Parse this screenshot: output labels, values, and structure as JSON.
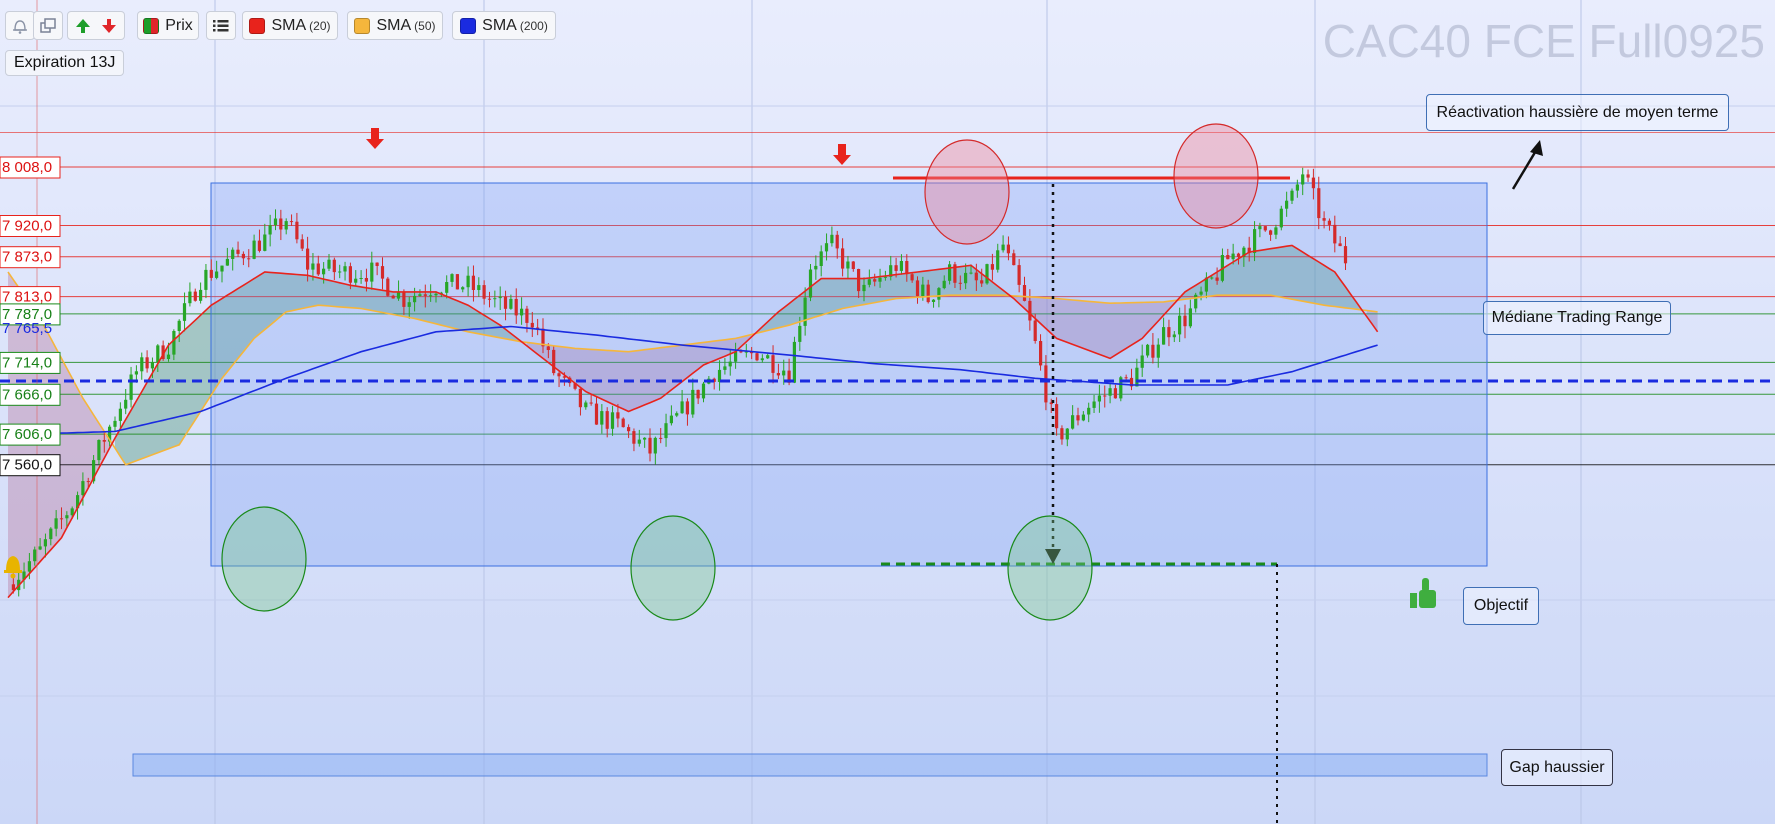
{
  "toolbar": {
    "prix_label": "Prix",
    "indicators": [
      {
        "name": "SMA",
        "period": "(20)",
        "color": "#e8231c"
      },
      {
        "name": "SMA",
        "period": "(50)",
        "color": "#f5b63c"
      },
      {
        "name": "SMA",
        "period": "(200)",
        "color": "#1a2be0"
      }
    ],
    "icons": [
      "alert-bell-icon",
      "window-icon",
      "arrow-up-icon",
      "arrow-down-icon",
      "candles-icon",
      "list-icon"
    ]
  },
  "expiration": {
    "label": "Expiration",
    "value": "13J"
  },
  "watermark": "CAC40 FCE Full0925",
  "colors": {
    "bull": "#27a627",
    "bear": "#d42a2a",
    "sma20": "#e8231c",
    "sma50": "#f5b63c",
    "sma200": "#1a2be0",
    "range_box": "#3a6fe0"
  },
  "chart_data": {
    "type": "candlestick",
    "instrument": "CAC40 FCE Full0925",
    "ylim": [
      7345,
      8090
    ],
    "price_levels": [
      {
        "value": "8 008,0",
        "color": "red"
      },
      {
        "value": "7 920,0",
        "color": "red"
      },
      {
        "value": "7 873,0",
        "color": "red"
      },
      {
        "value": "7 813,0",
        "color": "red"
      },
      {
        "value": "7 787,0",
        "color": "green"
      },
      {
        "value": "7 765,5",
        "color": "blue"
      },
      {
        "value": "7 714,0",
        "color": "green"
      },
      {
        "value": "7 666,0",
        "color": "green"
      },
      {
        "value": "7 606,0",
        "color": "green"
      },
      {
        "value": "7 560,0",
        "color": "black"
      }
    ],
    "close_path": [
      [
        0,
        7380
      ],
      [
        6,
        7430
      ],
      [
        12,
        7500
      ],
      [
        18,
        7600
      ],
      [
        24,
        7700
      ],
      [
        30,
        7740
      ],
      [
        36,
        7840
      ],
      [
        42,
        7870
      ],
      [
        48,
        7900
      ],
      [
        52,
        7930
      ],
      [
        56,
        7860
      ],
      [
        62,
        7850
      ],
      [
        68,
        7850
      ],
      [
        74,
        7810
      ],
      [
        80,
        7830
      ],
      [
        86,
        7830
      ],
      [
        92,
        7800
      ],
      [
        98,
        7780
      ],
      [
        102,
        7700
      ],
      [
        108,
        7640
      ],
      [
        114,
        7620
      ],
      [
        120,
        7580
      ],
      [
        126,
        7640
      ],
      [
        132,
        7700
      ],
      [
        140,
        7730
      ],
      [
        146,
        7700
      ],
      [
        150,
        7860
      ],
      [
        154,
        7890
      ],
      [
        160,
        7820
      ],
      [
        166,
        7860
      ],
      [
        172,
        7810
      ],
      [
        176,
        7850
      ],
      [
        182,
        7830
      ],
      [
        186,
        7890
      ],
      [
        190,
        7800
      ],
      [
        192,
        7740
      ],
      [
        196,
        7600
      ],
      [
        202,
        7650
      ],
      [
        210,
        7690
      ],
      [
        216,
        7760
      ],
      [
        220,
        7780
      ],
      [
        228,
        7870
      ],
      [
        236,
        7920
      ],
      [
        240,
        7960
      ],
      [
        242,
        8000
      ],
      [
        246,
        7920
      ],
      [
        250,
        7870
      ]
    ],
    "sma20": [
      [
        0,
        7360
      ],
      [
        10,
        7450
      ],
      [
        20,
        7600
      ],
      [
        30,
        7740
      ],
      [
        38,
        7800
      ],
      [
        48,
        7850
      ],
      [
        56,
        7845
      ],
      [
        64,
        7830
      ],
      [
        72,
        7820
      ],
      [
        80,
        7820
      ],
      [
        86,
        7800
      ],
      [
        92,
        7770
      ],
      [
        100,
        7720
      ],
      [
        108,
        7670
      ],
      [
        116,
        7640
      ],
      [
        122,
        7660
      ],
      [
        130,
        7710
      ],
      [
        136,
        7730
      ],
      [
        144,
        7790
      ],
      [
        152,
        7840
      ],
      [
        160,
        7840
      ],
      [
        170,
        7850
      ],
      [
        180,
        7860
      ],
      [
        188,
        7810
      ],
      [
        196,
        7750
      ],
      [
        206,
        7720
      ],
      [
        212,
        7750
      ],
      [
        220,
        7820
      ],
      [
        232,
        7880
      ],
      [
        240,
        7890
      ],
      [
        248,
        7850
      ],
      [
        256,
        7760
      ]
    ],
    "sma50": [
      [
        0,
        7850
      ],
      [
        6,
        7780
      ],
      [
        14,
        7660
      ],
      [
        22,
        7560
      ],
      [
        32,
        7590
      ],
      [
        40,
        7690
      ],
      [
        46,
        7750
      ],
      [
        52,
        7790
      ],
      [
        58,
        7800
      ],
      [
        66,
        7795
      ],
      [
        76,
        7780
      ],
      [
        86,
        7760
      ],
      [
        96,
        7745
      ],
      [
        106,
        7735
      ],
      [
        116,
        7730
      ],
      [
        126,
        7740
      ],
      [
        136,
        7750
      ],
      [
        146,
        7770
      ],
      [
        156,
        7795
      ],
      [
        166,
        7810
      ],
      [
        176,
        7815
      ],
      [
        186,
        7815
      ],
      [
        196,
        7810
      ],
      [
        206,
        7803
      ],
      [
        216,
        7805
      ],
      [
        226,
        7815
      ],
      [
        236,
        7815
      ],
      [
        246,
        7800
      ],
      [
        256,
        7790
      ]
    ],
    "sma200": [
      [
        0,
        7605
      ],
      [
        20,
        7610
      ],
      [
        36,
        7640
      ],
      [
        52,
        7690
      ],
      [
        66,
        7730
      ],
      [
        80,
        7760
      ],
      [
        94,
        7768
      ],
      [
        110,
        7755
      ],
      [
        126,
        7740
      ],
      [
        146,
        7725
      ],
      [
        162,
        7712
      ],
      [
        178,
        7703
      ],
      [
        192,
        7690
      ],
      [
        210,
        7680
      ],
      [
        228,
        7680
      ],
      [
        240,
        7700
      ],
      [
        256,
        7740
      ]
    ],
    "annotations": [
      {
        "id": "reactivation",
        "text": "Réactivation haussière de moyen terme"
      },
      {
        "id": "mediane",
        "text": "Médiane Trading Range"
      },
      {
        "id": "objectif",
        "text": "Objectif"
      },
      {
        "id": "gap",
        "text": "Gap haussier"
      }
    ]
  }
}
